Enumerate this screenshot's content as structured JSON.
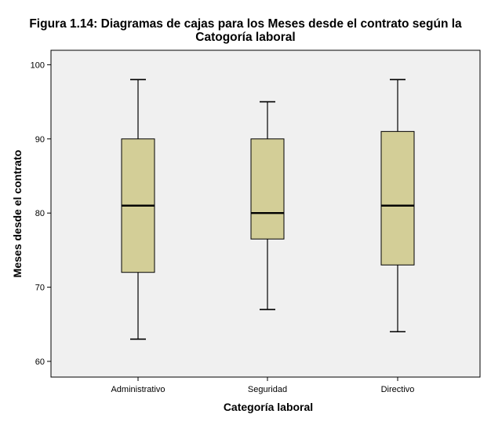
{
  "title_line1": "Figura 1.14: Diagramas de cajas para los Meses desde el contrato según la",
  "title_line2": "Catogoría laboral",
  "chart_data": {
    "type": "boxplot",
    "title": "Figura 1.14: Diagramas de cajas para los Meses desde el contrato según la Catogoría laboral",
    "xlabel": "Categoría laboral",
    "ylabel": "Meses desde el contrato",
    "ylim": [
      58,
      102
    ],
    "yticks": [
      60,
      70,
      80,
      90,
      100
    ],
    "grid": false,
    "categories": [
      "Administrativo",
      "Seguridad",
      "Directivo"
    ],
    "boxes": [
      {
        "category": "Administrativo",
        "min": 63,
        "q1": 72,
        "median": 81,
        "q3": 90,
        "max": 98
      },
      {
        "category": "Seguridad",
        "min": 67,
        "q1": 76.5,
        "median": 80,
        "q3": 90,
        "max": 95
      },
      {
        "category": "Directivo",
        "min": 64,
        "q1": 73,
        "median": 81,
        "q3": 91,
        "max": 98
      }
    ],
    "colors": {
      "plot_background": "#f0f0f0",
      "box_fill": "#d3ce97",
      "line": "#000000"
    }
  }
}
